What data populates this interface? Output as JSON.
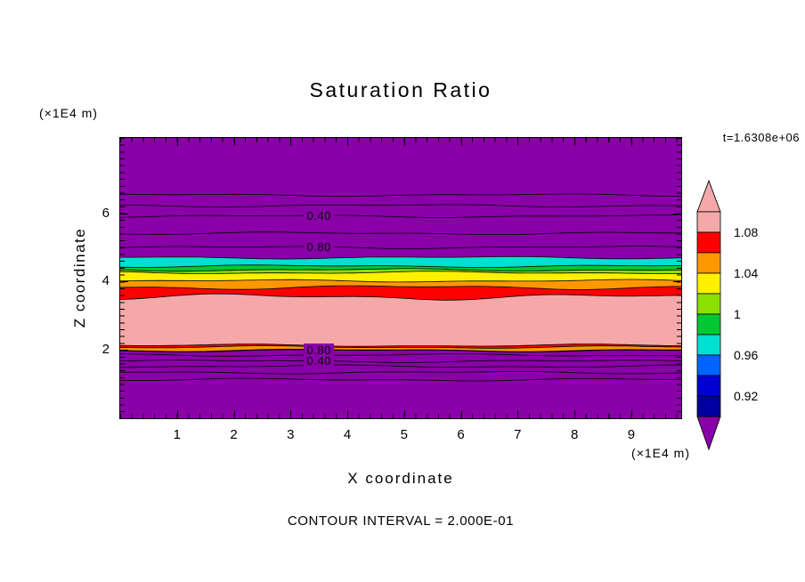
{
  "chart_data": {
    "type": "filled-contour",
    "title": "Saturation Ratio",
    "time_annotation": "t=1.6308e+06",
    "xlabel": "X coordinate",
    "ylabel": "Z coordinate",
    "x_unit": "(×1E4 m)",
    "z_unit": "(×1E4 m)",
    "contour_interval_label": "CONTOUR INTERVAL = 2.000E-01",
    "contour_interval": "2.000E-01",
    "x_range": [
      0,
      9.88
    ],
    "z_range": [
      0,
      8.2
    ],
    "x_ticks": [
      1,
      2,
      3,
      4,
      5,
      6,
      7,
      8,
      9
    ],
    "z_ticks": [
      6,
      4,
      2
    ],
    "background_color": "#8A00A8",
    "label_x": 3.5,
    "bands": [
      {
        "z_from": 4.45,
        "z_to": 4.7,
        "color": "#00E0D2"
      },
      {
        "z_from": 4.34,
        "z_to": 4.45,
        "color": "#00C832"
      },
      {
        "z_from": 4.26,
        "z_to": 4.34,
        "color": "#8CE000"
      },
      {
        "z_from": 4.02,
        "z_to": 4.26,
        "color": "#FFF000"
      },
      {
        "z_from": 3.83,
        "z_to": 4.02,
        "color": "#FF9800"
      },
      {
        "z_from": 3.55,
        "z_to": 3.83,
        "color": "#FF0000"
      },
      {
        "z_from": 2.13,
        "z_to": 3.55,
        "color": "#F5A8A8"
      },
      {
        "z_from": 2.08,
        "z_to": 2.13,
        "color": "#FF0000"
      },
      {
        "z_from": 1.99,
        "z_to": 2.08,
        "color": "#FF9800"
      }
    ],
    "contour_lines": [
      {
        "z": 6.53,
        "label": ""
      },
      {
        "z": 6.22,
        "label": ""
      },
      {
        "z": 5.91,
        "label": "0.40"
      },
      {
        "z": 5.41,
        "label": ""
      },
      {
        "z": 5.0,
        "label": "0.80"
      },
      {
        "z": 1.98,
        "label": "0.80"
      },
      {
        "z": 1.85,
        "label": ""
      },
      {
        "z": 1.67,
        "label": "0.40"
      },
      {
        "z": 1.52,
        "label": ""
      },
      {
        "z": 1.34,
        "label": ""
      },
      {
        "z": 1.13,
        "label": ""
      }
    ],
    "colorbar": {
      "tick_labels": [
        "1.08",
        "1.04",
        "1",
        "0.96",
        "0.92"
      ],
      "band_colors": [
        "#F5A8A8",
        "#FF0000",
        "#FF9800",
        "#FFF000",
        "#8CE000",
        "#00C832",
        "#00E0D2",
        "#0064FF",
        "#0000D2",
        "#0000A0"
      ],
      "top_cap_color": "#F5A8A8",
      "bottom_cap_color": "#8A00A8"
    }
  }
}
